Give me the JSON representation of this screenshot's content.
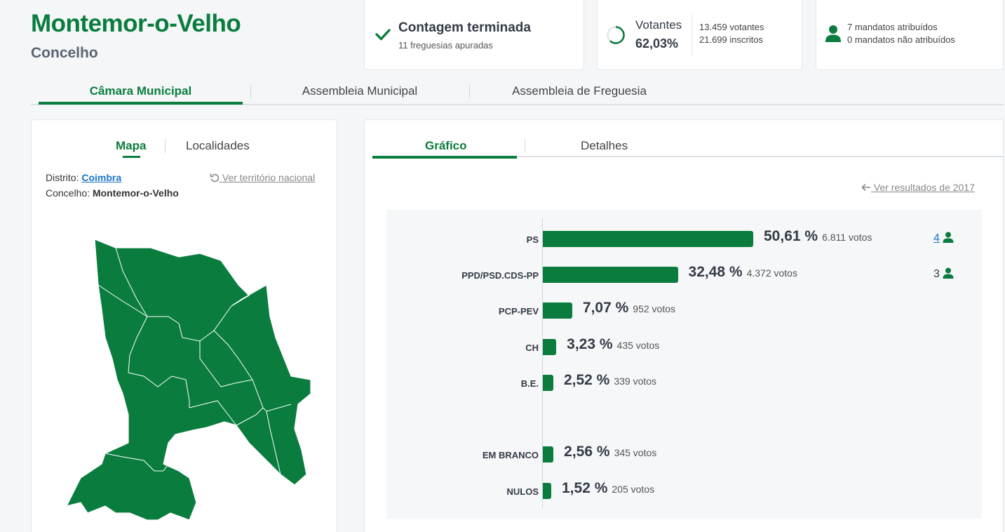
{
  "header": {
    "title": "Montemor-o-Velho",
    "subtitle": "Concelho"
  },
  "summary": {
    "count": {
      "title": "Contagem terminada",
      "sub": "11 freguesias apuradas"
    },
    "turnout": {
      "label": "Votantes",
      "percent": "62,03%",
      "fraction": 0.6203,
      "voters": "13.459 votantes",
      "registered": "21.699 inscritos"
    },
    "mandates": {
      "assigned": "7 mandatos atribuídos",
      "unassigned": "0 mandatos não atribuídos"
    }
  },
  "main_tabs": [
    {
      "label": "Câmara Municipal",
      "active": true
    },
    {
      "label": "Assembleia Municipal",
      "active": false
    },
    {
      "label": "Assembleia de Freguesia",
      "active": false
    }
  ],
  "left_panel": {
    "tabs": [
      {
        "label": "Mapa",
        "active": true
      },
      {
        "label": "Localidades",
        "active": false
      }
    ],
    "district_label": "Distrito:",
    "district_value": "Coimbra",
    "council_label": "Concelho:",
    "council_value": "Montemor-o-Velho",
    "national_link": "Ver território nacional",
    "map_color": "#0a7d3e"
  },
  "right_panel": {
    "tabs": [
      {
        "label": "Gráfico",
        "active": true
      },
      {
        "label": "Detalhes",
        "active": false
      }
    ],
    "previous_link": "Ver resultados de 2017"
  },
  "colors": {
    "accent": "#0a7d3e",
    "link": "#1a73c8"
  },
  "chart_data": {
    "type": "bar",
    "orientation": "horizontal",
    "categories": [
      "PS",
      "PPD/PSD.CDS-PP",
      "PCP-PEV",
      "CH",
      "B.E.",
      "EM BRANCO",
      "NULOS"
    ],
    "values": [
      50.61,
      32.48,
      7.07,
      3.23,
      2.52,
      2.56,
      1.52
    ],
    "value_labels": [
      "50,61 %",
      "32,48 %",
      "7,07 %",
      "3,23 %",
      "2,52 %",
      "2,56 %",
      "1,52 %"
    ],
    "votes": [
      "6.811 votos",
      "4.372 votos",
      "952 votos",
      "435 votos",
      "339 votos",
      "345 votos",
      "205 votos"
    ],
    "seats": [
      "4",
      "3",
      "",
      "",
      "",
      "",
      ""
    ],
    "seat_linked": [
      true,
      false,
      false,
      false,
      false,
      false,
      false
    ],
    "xlim": [
      0,
      60
    ]
  }
}
